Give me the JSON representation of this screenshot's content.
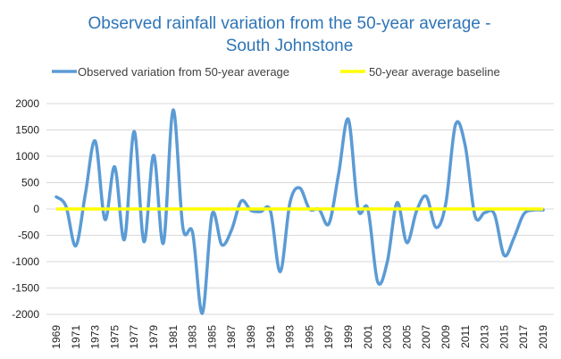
{
  "chart_data": {
    "type": "line",
    "title_line1": "Observed  rainfall variation from the 50-year average -",
    "title_line2": "South Johnstone",
    "xlabel": "",
    "ylabel": "",
    "ylim": [
      -2000,
      2000
    ],
    "yticks": [
      2000,
      1500,
      1000,
      500,
      0,
      -500,
      -1000,
      -1500,
      -2000
    ],
    "xlim": [
      1969,
      2019
    ],
    "xtick_labels": [
      "1969",
      "1971",
      "1973",
      "1975",
      "1977",
      "1979",
      "1981",
      "1983",
      "1985",
      "1987",
      "1989",
      "1991",
      "1993",
      "1995",
      "1997",
      "1999",
      "2001",
      "2003",
      "2005",
      "2007",
      "2009",
      "2011",
      "2013",
      "2015",
      "2017",
      "2019"
    ],
    "grid": true,
    "legend_position": "top",
    "series": [
      {
        "name": "Observed variation from 50-year average",
        "color": "#5B9BD5",
        "x": [
          1969,
          1970,
          1971,
          1972,
          1973,
          1974,
          1975,
          1976,
          1977,
          1978,
          1979,
          1980,
          1981,
          1982,
          1983,
          1984,
          1985,
          1986,
          1987,
          1988,
          1989,
          1990,
          1991,
          1992,
          1993,
          1994,
          1995,
          1996,
          1997,
          1998,
          1999,
          2000,
          2001,
          2002,
          2003,
          2004,
          2005,
          2006,
          2007,
          2008,
          2009,
          2010,
          2011,
          2012,
          2013,
          2014,
          2015,
          2016,
          2017,
          2018,
          2019
        ],
        "values": [
          230,
          50,
          -700,
          300,
          1290,
          -200,
          800,
          -580,
          1470,
          -620,
          1020,
          -650,
          1880,
          -350,
          -450,
          -1980,
          -100,
          -680,
          -400,
          150,
          -30,
          -50,
          -40,
          -1190,
          120,
          400,
          0,
          -10,
          -280,
          670,
          1700,
          0,
          0,
          -1380,
          -1000,
          120,
          -640,
          -40,
          240,
          -350,
          100,
          1600,
          1200,
          -130,
          -70,
          -100,
          -880,
          -550,
          -100,
          -20,
          -20
        ]
      },
      {
        "name": "50-year average baseline",
        "color": "#FFFF00",
        "x": [
          1969,
          2019
        ],
        "values": [
          0,
          0
        ]
      }
    ]
  }
}
